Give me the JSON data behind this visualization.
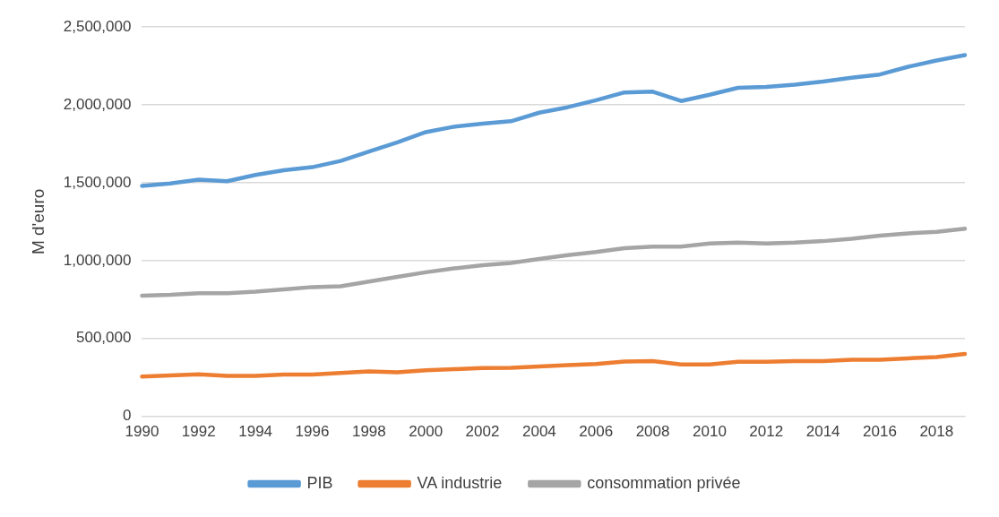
{
  "chart_data": {
    "type": "line",
    "ylabel": "M d'euro",
    "categories": [
      "1990",
      null,
      "1992",
      null,
      "1994",
      null,
      "1996",
      null,
      "1998",
      null,
      "2000",
      null,
      "2002",
      null,
      "2004",
      null,
      "2006",
      null,
      "2008",
      null,
      "2010",
      null,
      "2012",
      null,
      "2014",
      null,
      "2016",
      null,
      "2018",
      null
    ],
    "series": [
      {
        "name": "PIB",
        "color": "#5b9bd5",
        "values": [
          1480000,
          1495000,
          1520000,
          1510000,
          1550000,
          1580000,
          1600000,
          1640000,
          1700000,
          1760000,
          1825000,
          1860000,
          1880000,
          1895000,
          1950000,
          1985000,
          2030000,
          2080000,
          2085000,
          2025000,
          2065000,
          2110000,
          2115000,
          2130000,
          2150000,
          2175000,
          2195000,
          2245000,
          2285000,
          2320000
        ]
      },
      {
        "name": "VA industrie",
        "color": "#ed7d31",
        "values": [
          255000,
          262000,
          270000,
          260000,
          260000,
          268000,
          268000,
          278000,
          288000,
          282000,
          295000,
          303000,
          310000,
          312000,
          320000,
          328000,
          336000,
          352000,
          355000,
          333000,
          333000,
          350000,
          350000,
          355000,
          355000,
          363000,
          363000,
          372000,
          380000,
          400000
        ]
      },
      {
        "name": "consommation privée",
        "color": "#a5a5a5",
        "values": [
          775000,
          780000,
          790000,
          790000,
          800000,
          815000,
          830000,
          835000,
          865000,
          895000,
          925000,
          950000,
          970000,
          985000,
          1010000,
          1035000,
          1055000,
          1080000,
          1090000,
          1090000,
          1110000,
          1115000,
          1110000,
          1115000,
          1125000,
          1140000,
          1160000,
          1175000,
          1185000,
          1205000
        ]
      }
    ],
    "ylim": [
      0,
      2500000
    ],
    "yticks": [
      {
        "value": 0,
        "label": "0"
      },
      {
        "value": 500000,
        "label": "500,000"
      },
      {
        "value": 1000000,
        "label": "1,000,000"
      },
      {
        "value": 1500000,
        "label": "1,500,000"
      },
      {
        "value": 2000000,
        "label": "2,000,000"
      },
      {
        "value": 2500000,
        "label": "2,500,000"
      }
    ],
    "grid": "y",
    "legend": "bottom",
    "marker": "none",
    "line_style": "solid"
  }
}
